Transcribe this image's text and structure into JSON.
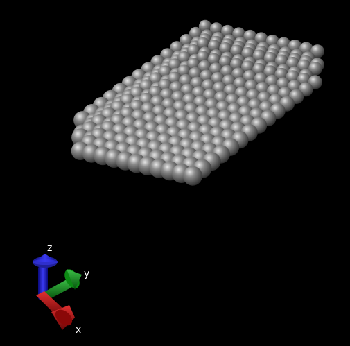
{
  "scene": {
    "background": "#000000",
    "atom_color": "#8a8a8a",
    "atom_highlight": "#e6e6e6",
    "atom_shadow": "#2a2a2a",
    "icon": "sphere-atom-icon"
  },
  "axes": {
    "x": {
      "label": "x",
      "color": "#b01010",
      "icon": "arrow-x-icon"
    },
    "y": {
      "label": "y",
      "color": "#0c8a14",
      "icon": "arrow-y-icon"
    },
    "z": {
      "label": "z",
      "color": "#1818c8",
      "icon": "arrow-z-icon"
    }
  }
}
